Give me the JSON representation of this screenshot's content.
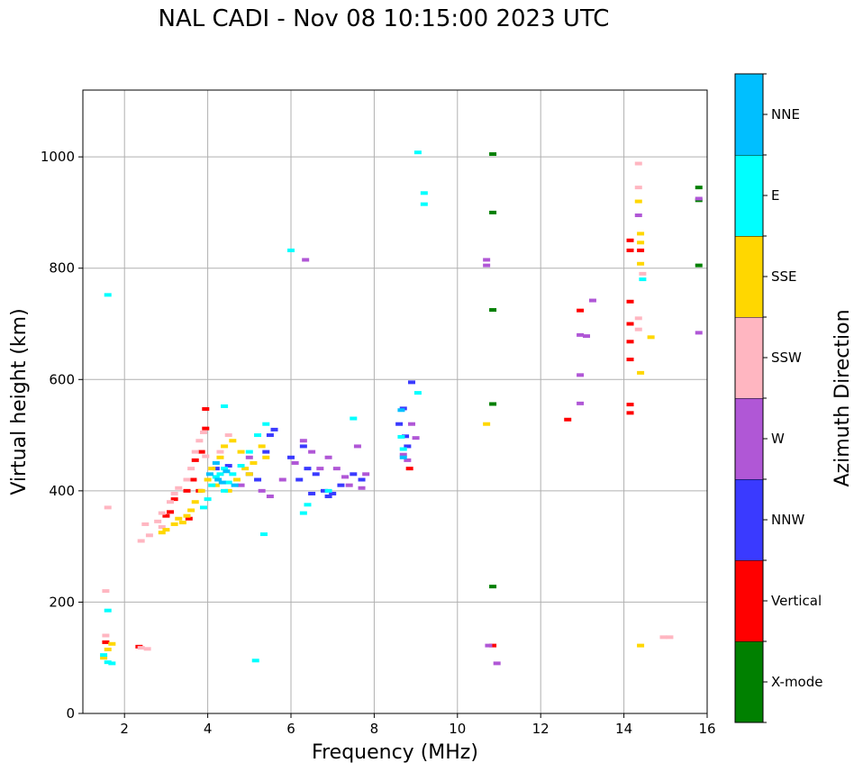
{
  "chart_data": {
    "type": "scatter",
    "title": "NAL CADI - Nov 08 10:15:00 2023 UTC",
    "xlabel": "Frequency (MHz)",
    "ylabel": "Virtual height (km)",
    "xlim": [
      1,
      16
    ],
    "ylim": [
      0,
      1120
    ],
    "xticks": [
      "2",
      "4",
      "6",
      "8",
      "10",
      "12",
      "14",
      "16"
    ],
    "yticks": [
      "0",
      "200",
      "400",
      "600",
      "800",
      "1000"
    ],
    "grid": true,
    "colorbar": {
      "label": "Azimuth Direction",
      "categories": [
        {
          "name": "X-mode",
          "color": "#008000"
        },
        {
          "name": "Vertical",
          "color": "#ff0000"
        },
        {
          "name": "NNW",
          "color": "#3a3aff"
        },
        {
          "name": "W",
          "color": "#b057d6"
        },
        {
          "name": "SSW",
          "color": "#ffb6c1"
        },
        {
          "name": "SSE",
          "color": "#ffd700"
        },
        {
          "name": "E",
          "color": "#00ffff"
        },
        {
          "name": "NNE",
          "color": "#00bfff"
        }
      ]
    },
    "series": [
      {
        "name": "X-mode",
        "points": [
          [
            10.85,
            1005
          ],
          [
            10.85,
            900
          ],
          [
            10.85,
            725
          ],
          [
            10.85,
            556
          ],
          [
            10.85,
            228
          ],
          [
            15.8,
            945
          ],
          [
            15.8,
            922
          ],
          [
            15.8,
            805
          ]
        ]
      },
      {
        "name": "Vertical",
        "points": [
          [
            3.95,
            547
          ],
          [
            3.95,
            512
          ],
          [
            3.85,
            470
          ],
          [
            3.7,
            455
          ],
          [
            3.65,
            420
          ],
          [
            3.5,
            400
          ],
          [
            3.2,
            385
          ],
          [
            3.1,
            362
          ],
          [
            3.0,
            355
          ],
          [
            3.55,
            350
          ],
          [
            3.8,
            400
          ],
          [
            1.55,
            128
          ],
          [
            2.35,
            120
          ],
          [
            10.85,
            122
          ],
          [
            12.65,
            528
          ],
          [
            12.95,
            724
          ],
          [
            14.15,
            850
          ],
          [
            14.15,
            832
          ],
          [
            14.15,
            740
          ],
          [
            14.15,
            700
          ],
          [
            14.15,
            668
          ],
          [
            14.15,
            636
          ],
          [
            14.15,
            555
          ],
          [
            14.15,
            540
          ],
          [
            14.4,
            832
          ],
          [
            8.85,
            440
          ]
        ]
      },
      {
        "name": "NNW",
        "points": [
          [
            4.2,
            440
          ],
          [
            4.5,
            445
          ],
          [
            5.0,
            430
          ],
          [
            5.2,
            420
          ],
          [
            5.4,
            470
          ],
          [
            5.5,
            500
          ],
          [
            6.0,
            460
          ],
          [
            6.3,
            480
          ],
          [
            6.4,
            440
          ],
          [
            6.6,
            430
          ],
          [
            6.8,
            400
          ],
          [
            6.9,
            390
          ],
          [
            7.0,
            395
          ],
          [
            7.2,
            410
          ],
          [
            7.5,
            430
          ],
          [
            7.7,
            420
          ],
          [
            6.5,
            395
          ],
          [
            6.2,
            420
          ],
          [
            8.7,
            548
          ],
          [
            8.75,
            498
          ],
          [
            8.8,
            480
          ],
          [
            8.9,
            595
          ],
          [
            8.6,
            520
          ],
          [
            5.6,
            510
          ]
        ]
      },
      {
        "name": "W",
        "points": [
          [
            5.3,
            400
          ],
          [
            5.5,
            390
          ],
          [
            5.8,
            420
          ],
          [
            6.1,
            450
          ],
          [
            6.3,
            490
          ],
          [
            6.5,
            470
          ],
          [
            6.7,
            440
          ],
          [
            6.9,
            460
          ],
          [
            7.1,
            440
          ],
          [
            7.3,
            425
          ],
          [
            7.4,
            410
          ],
          [
            7.6,
            480
          ],
          [
            7.8,
            430
          ],
          [
            7.7,
            405
          ],
          [
            8.7,
            465
          ],
          [
            8.8,
            455
          ],
          [
            8.9,
            520
          ],
          [
            9.0,
            495
          ],
          [
            6.35,
            815
          ],
          [
            10.7,
            815
          ],
          [
            10.7,
            805
          ],
          [
            10.75,
            122
          ],
          [
            10.95,
            90
          ],
          [
            12.95,
            680
          ],
          [
            13.1,
            678
          ],
          [
            12.95,
            608
          ],
          [
            12.95,
            557
          ],
          [
            13.25,
            742
          ],
          [
            14.35,
            895
          ],
          [
            15.8,
            925
          ],
          [
            15.8,
            684
          ],
          [
            5.0,
            460
          ],
          [
            4.8,
            410
          ]
        ]
      },
      {
        "name": "SSW",
        "points": [
          [
            1.55,
            220
          ],
          [
            1.55,
            140
          ],
          [
            1.6,
            370
          ],
          [
            2.4,
            310
          ],
          [
            2.5,
            340
          ],
          [
            2.6,
            320
          ],
          [
            2.8,
            345
          ],
          [
            2.9,
            360
          ],
          [
            3.1,
            380
          ],
          [
            3.2,
            395
          ],
          [
            3.3,
            405
          ],
          [
            3.5,
            420
          ],
          [
            3.6,
            440
          ],
          [
            3.7,
            470
          ],
          [
            3.8,
            490
          ],
          [
            3.9,
            505
          ],
          [
            3.95,
            462
          ],
          [
            4.3,
            470
          ],
          [
            4.5,
            500
          ],
          [
            2.4,
            118
          ],
          [
            2.55,
            116
          ],
          [
            14.35,
            988
          ],
          [
            14.35,
            945
          ],
          [
            14.35,
            710
          ],
          [
            14.35,
            690
          ],
          [
            14.45,
            790
          ],
          [
            14.95,
            137
          ],
          [
            15.1,
            137
          ],
          [
            2.9,
            335
          ]
        ]
      },
      {
        "name": "SSE",
        "points": [
          [
            1.5,
            100
          ],
          [
            1.6,
            115
          ],
          [
            1.7,
            125
          ],
          [
            2.9,
            325
          ],
          [
            3.0,
            330
          ],
          [
            3.2,
            340
          ],
          [
            3.3,
            350
          ],
          [
            3.5,
            355
          ],
          [
            3.6,
            365
          ],
          [
            3.7,
            380
          ],
          [
            3.85,
            400
          ],
          [
            4.0,
            420
          ],
          [
            4.1,
            440
          ],
          [
            4.3,
            460
          ],
          [
            4.4,
            480
          ],
          [
            4.6,
            490
          ],
          [
            4.8,
            470
          ],
          [
            4.9,
            440
          ],
          [
            5.0,
            430
          ],
          [
            5.1,
            450
          ],
          [
            5.3,
            480
          ],
          [
            5.4,
            460
          ],
          [
            4.2,
            410
          ],
          [
            4.5,
            400
          ],
          [
            4.7,
            420
          ],
          [
            10.7,
            520
          ],
          [
            14.35,
            920
          ],
          [
            14.4,
            862
          ],
          [
            14.4,
            846
          ],
          [
            14.4,
            808
          ],
          [
            14.4,
            612
          ],
          [
            14.65,
            676
          ],
          [
            14.4,
            122
          ],
          [
            3.4,
            343
          ]
        ]
      },
      {
        "name": "E",
        "points": [
          [
            1.6,
            752
          ],
          [
            1.6,
            185
          ],
          [
            1.6,
            92
          ],
          [
            1.5,
            105
          ],
          [
            1.7,
            90
          ],
          [
            3.9,
            370
          ],
          [
            4.0,
            385
          ],
          [
            4.1,
            410
          ],
          [
            4.2,
            425
          ],
          [
            4.3,
            430
          ],
          [
            4.4,
            440
          ],
          [
            4.5,
            415
          ],
          [
            4.6,
            430
          ],
          [
            4.4,
            400
          ],
          [
            4.8,
            445
          ],
          [
            5.0,
            470
          ],
          [
            5.2,
            500
          ],
          [
            5.4,
            520
          ],
          [
            5.15,
            95
          ],
          [
            5.35,
            322
          ],
          [
            6.0,
            832
          ],
          [
            6.3,
            360
          ],
          [
            6.4,
            375
          ],
          [
            6.9,
            400
          ],
          [
            7.5,
            530
          ],
          [
            8.65,
            497
          ],
          [
            8.7,
            475
          ],
          [
            9.05,
            1008
          ],
          [
            9.05,
            576
          ],
          [
            9.2,
            935
          ],
          [
            9.2,
            915
          ],
          [
            14.45,
            780
          ],
          [
            4.4,
            552
          ]
        ]
      },
      {
        "name": "NNE",
        "points": [
          [
            4.25,
            420
          ],
          [
            4.45,
            435
          ],
          [
            4.2,
            450
          ],
          [
            4.65,
            410
          ],
          [
            4.05,
            430
          ],
          [
            4.35,
            415
          ],
          [
            8.7,
            460
          ],
          [
            8.65,
            545
          ]
        ]
      }
    ]
  }
}
